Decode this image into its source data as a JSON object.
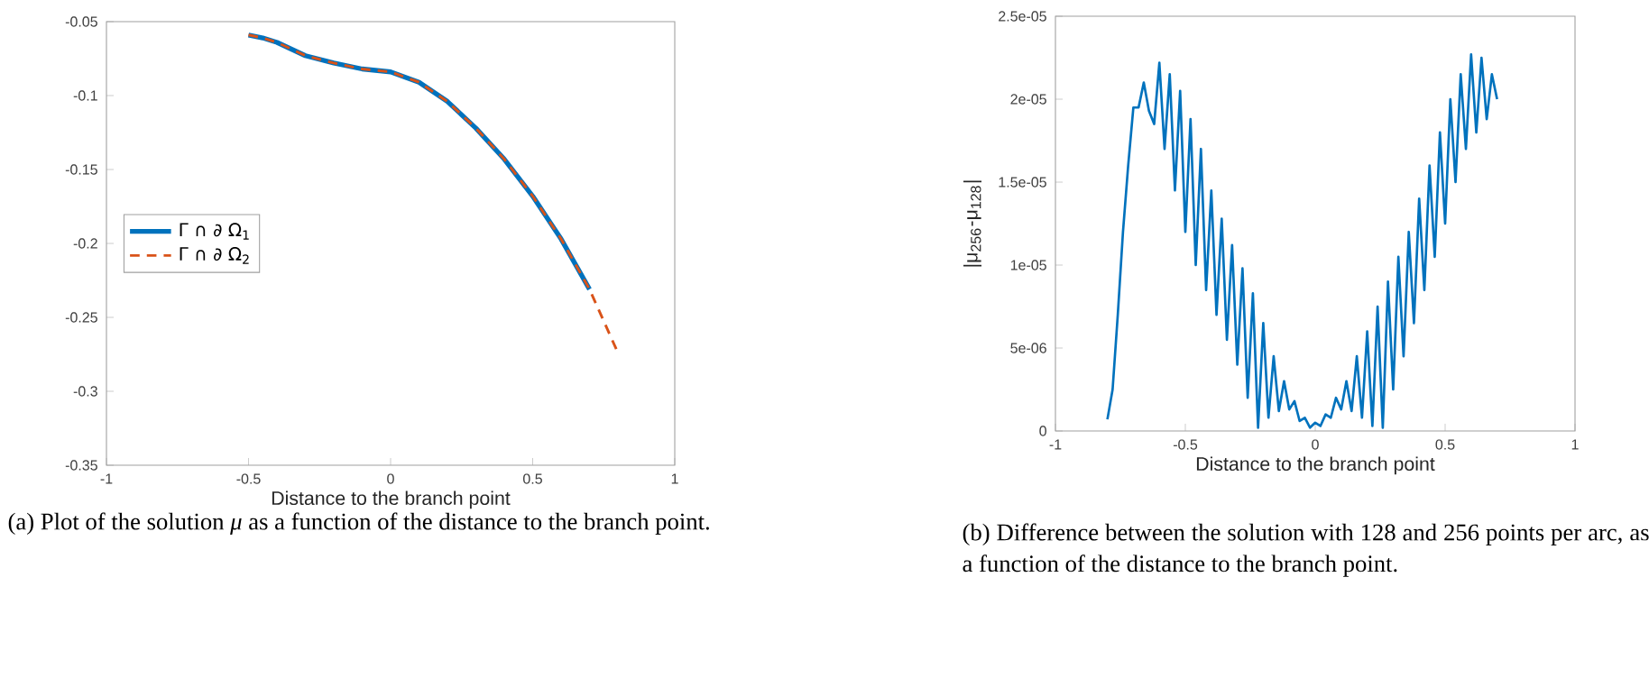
{
  "chart_data": [
    {
      "type": "line",
      "xlabel": "Distance to the branch point",
      "xlim": [
        -1,
        1
      ],
      "xticks": [
        -1,
        -0.5,
        0,
        0.5,
        1
      ],
      "ylim": [
        -0.35,
        -0.05
      ],
      "yticks": [
        -0.35,
        -0.3,
        -0.25,
        -0.2,
        -0.15,
        -0.1,
        -0.05
      ],
      "legend": "left",
      "series": [
        {
          "name": "Γ ∩ ∂ Ω$_{1}$",
          "color": "#0072bd",
          "line_style": "solid",
          "x": [
            -0.5,
            -0.45,
            -0.4,
            -0.3,
            -0.2,
            -0.1,
            0,
            0.1,
            0.2,
            0.3,
            0.4,
            0.5,
            0.6,
            0.7
          ],
          "values": [
            -0.059,
            -0.061,
            -0.064,
            -0.073,
            -0.078,
            -0.082,
            -0.084,
            -0.091,
            -0.104,
            -0.122,
            -0.143,
            -0.168,
            -0.197,
            -0.231
          ]
        },
        {
          "name": "Γ ∩ ∂ Ω$_{2}$",
          "color": "#d95319",
          "line_style": "dashed",
          "x": [
            -0.5,
            -0.45,
            -0.4,
            -0.3,
            -0.2,
            -0.1,
            0,
            0.1,
            0.2,
            0.3,
            0.4,
            0.5,
            0.6,
            0.7,
            0.8
          ],
          "values": [
            -0.059,
            -0.061,
            -0.064,
            -0.073,
            -0.078,
            -0.082,
            -0.084,
            -0.091,
            -0.104,
            -0.122,
            -0.143,
            -0.168,
            -0.197,
            -0.231,
            -0.274
          ]
        }
      ],
      "annotations": [
        "(a) Plot of the solution *μ* as a function of the distance to the branch point."
      ]
    },
    {
      "type": "line",
      "xlabel": "Distance to the branch point",
      "ylabel": "|μ$_{256}$-μ$_{128}$|",
      "xlim": [
        -1,
        1
      ],
      "xticks": [
        -1,
        -0.5,
        0,
        0.5,
        1
      ],
      "ylim": [
        0,
        2.5e-05
      ],
      "yticks": [
        0,
        {
          "value": 5e-06,
          "label": "5e-06"
        },
        {
          "value": 1e-05,
          "label": "1e-05"
        },
        {
          "value": 1.5e-05,
          "label": "1.5e-05"
        },
        {
          "value": 2e-05,
          "label": "2e-05"
        },
        {
          "value": 2.5e-05,
          "label": "2.5e-05"
        }
      ],
      "series": [
        {
          "color": "#0072bd",
          "line_style": "solid",
          "x": [
            -0.8,
            -0.78,
            -0.76,
            -0.74,
            -0.72,
            -0.7,
            -0.68,
            -0.66,
            -0.64,
            -0.62,
            -0.6,
            -0.58,
            -0.56,
            -0.54,
            -0.52,
            -0.5,
            -0.48,
            -0.46,
            -0.44,
            -0.42,
            -0.4,
            -0.38,
            -0.36,
            -0.34,
            -0.32,
            -0.3,
            -0.28,
            -0.26,
            -0.24,
            -0.22,
            -0.2,
            -0.18,
            -0.16,
            -0.14,
            -0.12,
            -0.1,
            -0.08,
            -0.06,
            -0.04,
            -0.02,
            0,
            0.02,
            0.04,
            0.06,
            0.08,
            0.1,
            0.12,
            0.14,
            0.16,
            0.18,
            0.2,
            0.22,
            0.24,
            0.26,
            0.28,
            0.3,
            0.32,
            0.34,
            0.36,
            0.38,
            0.4,
            0.42,
            0.44,
            0.46,
            0.48,
            0.5,
            0.52,
            0.54,
            0.56,
            0.58,
            0.6,
            0.62,
            0.64,
            0.66,
            0.68,
            0.7
          ],
          "values": [
            7e-07,
            2.5e-06,
            7e-06,
            1.2e-05,
            1.6e-05,
            1.95e-05,
            1.95e-05,
            2.1e-05,
            1.93e-05,
            1.85e-05,
            2.22e-05,
            1.7e-05,
            2.15e-05,
            1.45e-05,
            2.05e-05,
            1.2e-05,
            1.88e-05,
            1e-05,
            1.7e-05,
            8.5e-06,
            1.45e-05,
            7e-06,
            1.28e-05,
            5.5e-06,
            1.12e-05,
            4e-06,
            9.8e-06,
            2e-06,
            8.3e-06,
            2e-07,
            6.5e-06,
            8e-07,
            4.5e-06,
            1.2e-06,
            3e-06,
            1.3e-06,
            1.8e-06,
            6e-07,
            8e-07,
            2e-07,
            5e-07,
            3e-07,
            1e-06,
            8e-07,
            2e-06,
            1.3e-06,
            3e-06,
            1.2e-06,
            4.5e-06,
            8e-07,
            6e-06,
            3e-07,
            7.5e-06,
            2e-07,
            9e-06,
            2.5e-06,
            1.05e-05,
            4.5e-06,
            1.2e-05,
            6.5e-06,
            1.4e-05,
            8.5e-06,
            1.6e-05,
            1.05e-05,
            1.8e-05,
            1.25e-05,
            2e-05,
            1.5e-05,
            2.15e-05,
            1.7e-05,
            2.27e-05,
            1.8e-05,
            2.25e-05,
            1.88e-05,
            2.15e-05,
            2e-05
          ]
        }
      ],
      "annotations": [
        "(b) Difference between the solution with 128 and 256 points per arc, as a function of the distance to the branch point."
      ]
    }
  ]
}
